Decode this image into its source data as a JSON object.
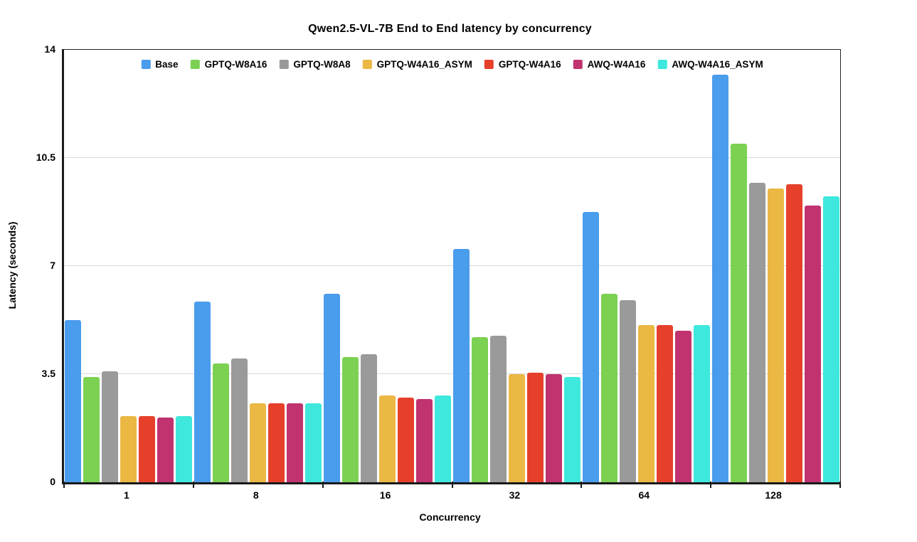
{
  "chart_data": {
    "type": "bar",
    "title": "Qwen2.5-VL-7B End to End latency by concurrency",
    "xlabel": "Concurrency",
    "ylabel": "Latency (seconds)",
    "ylim": [
      0,
      14
    ],
    "yticks": [
      0,
      3.5,
      7,
      10.5,
      14
    ],
    "grid": "horizontal-only",
    "legend_position": "top-center-inside",
    "categories": [
      "1",
      "8",
      "16",
      "32",
      "64",
      "128"
    ],
    "series": [
      {
        "name": "Base",
        "color": "#4A9CEC",
        "values": [
          5.25,
          5.85,
          6.1,
          7.55,
          8.75,
          13.2
        ]
      },
      {
        "name": "GPTQ-W8A16",
        "color": "#7CD152",
        "values": [
          3.4,
          3.85,
          4.05,
          4.7,
          6.1,
          10.95
        ]
      },
      {
        "name": "GPTQ-W8A8",
        "color": "#9A9A9A",
        "values": [
          3.6,
          4.0,
          4.15,
          4.75,
          5.9,
          9.7
        ]
      },
      {
        "name": "GPTQ-W4A16_ASYM",
        "color": "#EBB844",
        "values": [
          2.15,
          2.55,
          2.8,
          3.5,
          5.1,
          9.5
        ]
      },
      {
        "name": "GPTQ-W4A16",
        "color": "#E6402B",
        "values": [
          2.15,
          2.55,
          2.75,
          3.55,
          5.1,
          9.65
        ]
      },
      {
        "name": "AWQ-W4A16",
        "color": "#C0336F",
        "values": [
          2.1,
          2.55,
          2.7,
          3.5,
          4.9,
          8.95
        ]
      },
      {
        "name": "AWQ-W4A16_ASYM",
        "color": "#3EE8DC",
        "values": [
          2.15,
          2.55,
          2.8,
          3.4,
          5.1,
          9.25
        ]
      }
    ]
  },
  "colors": {
    "background": "#ffffff",
    "axis": "#1a1a1a",
    "gridline": "#d9d9d9",
    "text": "#000000"
  }
}
